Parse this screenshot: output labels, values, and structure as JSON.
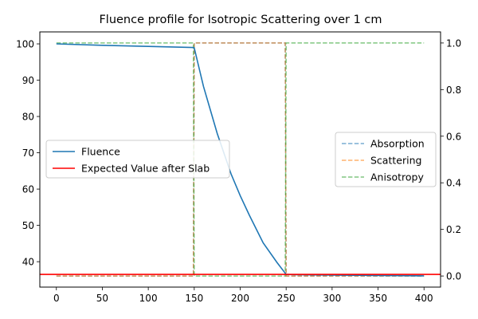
{
  "chart_data": {
    "type": "line",
    "title": "Fluence profile for Isotropic Scattering over 1 cm",
    "xlabel": "",
    "ylabel": "",
    "y2label": "",
    "xlim": [
      -18,
      418
    ],
    "ylim": [
      33.0,
      103.3
    ],
    "y2lim": [
      -0.0476,
      1.0476
    ],
    "xticks": [
      0,
      50,
      100,
      150,
      200,
      250,
      300,
      350,
      400
    ],
    "yticks": [
      40,
      50,
      60,
      70,
      80,
      90,
      100
    ],
    "y2ticks": [
      0.0,
      0.2,
      0.4,
      0.6,
      0.8,
      1.0
    ],
    "y2tick_labels": [
      "0.0",
      "0.2",
      "0.4",
      "0.6",
      "0.8",
      "1.0"
    ],
    "grid": false,
    "legend_left": {
      "placement": "center-left",
      "entries": [
        {
          "name": "Fluence",
          "color": "#1f77b4",
          "style": "solid"
        },
        {
          "name": "Expected Value after Slab",
          "color": "#ff0000",
          "style": "solid"
        }
      ]
    },
    "legend_right": {
      "placement": "center-right",
      "entries": [
        {
          "name": "Absorption",
          "color": "#1f77b4",
          "style": "dashed"
        },
        {
          "name": "Scattering",
          "color": "#ff7f0e",
          "style": "dashed"
        },
        {
          "name": "Anisotropy",
          "color": "#2ca02c",
          "style": "dashed"
        }
      ]
    },
    "series": [
      {
        "name": "Fluence",
        "axis": "left",
        "color": "#1f77b4",
        "style": "solid",
        "x": [
          0,
          50,
          100,
          149,
          150,
          160,
          175,
          190,
          200,
          210,
          225,
          240,
          250,
          260,
          300,
          350,
          400
        ],
        "y": [
          100.0,
          99.6,
          99.3,
          99.0,
          98.9,
          88.3,
          75.3,
          64.2,
          58.2,
          52.8,
          45.2,
          39.8,
          36.5,
          36.4,
          36.3,
          36.2,
          36.1
        ]
      },
      {
        "name": "Expected Value after Slab",
        "axis": "left",
        "color": "#ff0000",
        "style": "solid",
        "hline": 36.5
      },
      {
        "name": "Absorption",
        "axis": "right",
        "color": "#1f77b4",
        "style": "dashed",
        "opacity": 0.6,
        "x": [
          0,
          149,
          150,
          249,
          250,
          400
        ],
        "y": [
          0.0,
          0.0,
          1.0,
          1.0,
          0.0,
          0.0
        ]
      },
      {
        "name": "Scattering",
        "axis": "right",
        "color": "#ff7f0e",
        "style": "dashed",
        "opacity": 0.6,
        "x": [
          0,
          149,
          150,
          249,
          250,
          400
        ],
        "y": [
          0.0,
          0.0,
          1.0,
          1.0,
          0.0,
          0.0
        ]
      },
      {
        "name": "Anisotropy",
        "axis": "right",
        "color": "#2ca02c",
        "style": "dashed",
        "opacity": 0.6,
        "x": [
          0,
          149,
          150,
          249,
          250,
          400
        ],
        "y": [
          1.0,
          1.0,
          0.0,
          0.0,
          1.0,
          1.0
        ]
      }
    ]
  }
}
